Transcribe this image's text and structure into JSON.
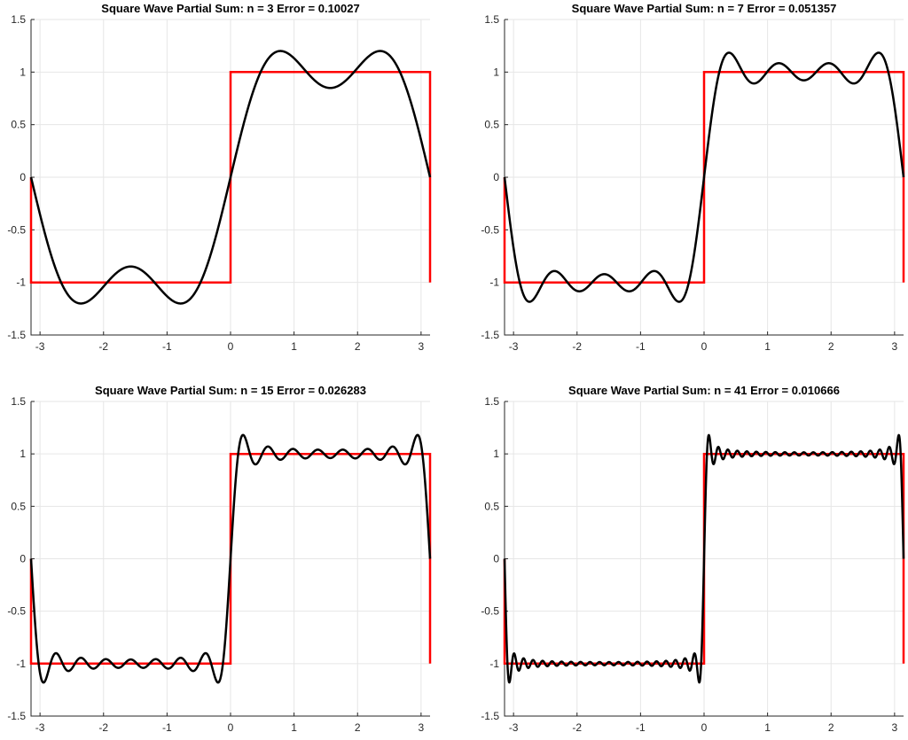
{
  "chart_data": [
    {
      "type": "line",
      "title": "Square Wave Partial Sum:  n = 3  Error = 0.10027",
      "n": 3,
      "error": 0.10027,
      "xlim": [
        -3.1416,
        3.1416
      ],
      "ylim": [
        -1.5,
        1.5
      ],
      "xticks": [
        "-3",
        "-2",
        "-1",
        "0",
        "1",
        "2",
        "3"
      ],
      "yticks": [
        "-1.5",
        "-1",
        "-0.5",
        "0",
        "0.5",
        "1",
        "1.5"
      ],
      "grid": true,
      "series": [
        {
          "kind": "square-wave",
          "color": "#ff0000",
          "points": [
            [
              -3.1416,
              0
            ],
            [
              -3.1416,
              -1
            ],
            [
              0,
              -1
            ],
            [
              0,
              1
            ],
            [
              3.1416,
              1
            ],
            [
              3.1416,
              -1
            ]
          ]
        },
        {
          "kind": "fourier-partial-sum",
          "color": "#000000",
          "max_harmonic": 3
        }
      ]
    },
    {
      "type": "line",
      "title": "Square Wave Partial Sum:  n = 7  Error = 0.051357",
      "n": 7,
      "error": 0.051357,
      "xlim": [
        -3.1416,
        3.1416
      ],
      "ylim": [
        -1.5,
        1.5
      ],
      "xticks": [
        "-3",
        "-2",
        "-1",
        "0",
        "1",
        "2",
        "3"
      ],
      "yticks": [
        "-1.5",
        "-1",
        "-0.5",
        "0",
        "0.5",
        "1",
        "1.5"
      ],
      "grid": true,
      "series": [
        {
          "kind": "square-wave",
          "color": "#ff0000",
          "points": [
            [
              -3.1416,
              0
            ],
            [
              -3.1416,
              -1
            ],
            [
              0,
              -1
            ],
            [
              0,
              1
            ],
            [
              3.1416,
              1
            ],
            [
              3.1416,
              -1
            ]
          ]
        },
        {
          "kind": "fourier-partial-sum",
          "color": "#000000",
          "max_harmonic": 7
        }
      ]
    },
    {
      "type": "line",
      "title": "Square Wave Partial Sum:  n = 15  Error = 0.026283",
      "n": 15,
      "error": 0.026283,
      "xlim": [
        -3.1416,
        3.1416
      ],
      "ylim": [
        -1.5,
        1.5
      ],
      "xticks": [
        "-3",
        "-2",
        "-1",
        "0",
        "1",
        "2",
        "3"
      ],
      "yticks": [
        "-1.5",
        "-1",
        "-0.5",
        "0",
        "0.5",
        "1",
        "1.5"
      ],
      "grid": true,
      "series": [
        {
          "kind": "square-wave",
          "color": "#ff0000",
          "points": [
            [
              -3.1416,
              0
            ],
            [
              -3.1416,
              -1
            ],
            [
              0,
              -1
            ],
            [
              0,
              1
            ],
            [
              3.1416,
              1
            ],
            [
              3.1416,
              -1
            ]
          ]
        },
        {
          "kind": "fourier-partial-sum",
          "color": "#000000",
          "max_harmonic": 15
        }
      ]
    },
    {
      "type": "line",
      "title": "Square Wave Partial Sum:  n = 41  Error = 0.010666",
      "n": 41,
      "error": 0.010666,
      "xlim": [
        -3.1416,
        3.1416
      ],
      "ylim": [
        -1.5,
        1.5
      ],
      "xticks": [
        "-3",
        "-2",
        "-1",
        "0",
        "1",
        "2",
        "3"
      ],
      "yticks": [
        "-1.5",
        "-1",
        "-0.5",
        "0",
        "0.5",
        "1",
        "1.5"
      ],
      "grid": true,
      "series": [
        {
          "kind": "square-wave",
          "color": "#ff0000",
          "points": [
            [
              -3.1416,
              0
            ],
            [
              -3.1416,
              -1
            ],
            [
              0,
              -1
            ],
            [
              0,
              1
            ],
            [
              3.1416,
              1
            ],
            [
              3.1416,
              -1
            ]
          ]
        },
        {
          "kind": "fourier-partial-sum",
          "color": "#000000",
          "max_harmonic": 41
        }
      ]
    }
  ]
}
